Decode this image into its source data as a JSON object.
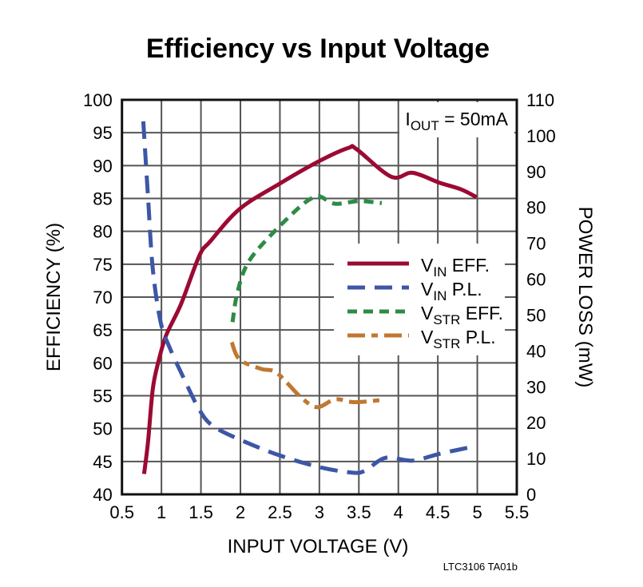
{
  "chart_data": {
    "type": "line",
    "title": "Efficiency vs Input Voltage",
    "xlabel": "INPUT VOLTAGE (V)",
    "ylabel": "EFFICIENCY (%)",
    "y2label": "POWER LOSS (mW)",
    "xlim": [
      0.5,
      5.5
    ],
    "ylim": [
      40,
      100
    ],
    "y2lim": [
      0,
      110
    ],
    "xticks": [
      "0.5",
      "1",
      "1.5",
      "2",
      "2.5",
      "3",
      "3.5",
      "4",
      "4.5",
      "5",
      "5.5"
    ],
    "yticks": [
      "40",
      "45",
      "50",
      "55",
      "60",
      "65",
      "70",
      "75",
      "80",
      "85",
      "90",
      "95",
      "100"
    ],
    "y2ticks": [
      "0",
      "10",
      "20",
      "30",
      "40",
      "50",
      "60",
      "70",
      "80",
      "90",
      "100",
      "110"
    ],
    "grid": true,
    "legend_position": "center-right",
    "annotation": {
      "main": "I",
      "sub": "OUT",
      "rest": " = 50mA"
    },
    "footnote": "LTC3106 TA01b",
    "series": [
      {
        "name": "VIN EFF.",
        "label_main": "V",
        "label_sub": "IN",
        "label_rest": " EFF.",
        "axis": "left",
        "color": "#9b0a32",
        "style": "solid",
        "x": [
          0.78,
          0.83,
          0.89,
          0.96,
          1.06,
          1.25,
          1.48,
          1.62,
          1.99,
          2.49,
          3.0,
          3.37,
          3.47,
          3.91,
          4.18,
          4.52,
          4.79,
          4.99
        ],
        "y": [
          43.1,
          48,
          56,
          60.1,
          64.2,
          69,
          76.3,
          78.5,
          83.4,
          87.2,
          90.7,
          92.7,
          92.5,
          88.3,
          88.9,
          87.4,
          86.4,
          85.2
        ]
      },
      {
        "name": "VIN P.L.",
        "label_main": "V",
        "label_sub": "IN",
        "label_rest": " P.L.",
        "axis": "right",
        "color": "#3d56a6",
        "style": "longdash",
        "x": [
          0.77,
          0.83,
          0.89,
          0.99,
          1.11,
          1.28,
          1.48,
          1.65,
          1.99,
          2.49,
          3.0,
          3.4,
          3.57,
          3.84,
          4.18,
          4.52,
          4.99
        ],
        "y": [
          104,
          82.9,
          62.9,
          48,
          40.6,
          32.5,
          23.6,
          19.1,
          15.3,
          10.9,
          7.6,
          6.1,
          6.5,
          10.2,
          9.4,
          11.3,
          13.5
        ]
      },
      {
        "name": "VSTR EFF.",
        "label_main": "V",
        "label_sub": "STR",
        "label_rest": " EFF.",
        "axis": "left",
        "color": "#2e8b45",
        "style": "shortdash",
        "x": [
          1.9,
          1.96,
          2.09,
          2.36,
          2.76,
          2.95,
          3.03,
          3.2,
          3.5,
          3.79
        ],
        "y": [
          66.2,
          70.6,
          75.1,
          79.1,
          83.8,
          85.3,
          85.2,
          84.2,
          84.6,
          84.3
        ]
      },
      {
        "name": "VSTR P.L.",
        "label_main": "V",
        "label_sub": "STR",
        "label_rest": " P.L.",
        "axis": "right",
        "color": "#c07830",
        "style": "dashdot",
        "x": [
          1.89,
          1.99,
          2.26,
          2.46,
          2.76,
          2.97,
          3.2,
          3.44,
          3.79
        ],
        "y": [
          42.4,
          37.6,
          35.0,
          33.9,
          27.2,
          24.3,
          26.5,
          25.7,
          26.3
        ]
      }
    ]
  }
}
